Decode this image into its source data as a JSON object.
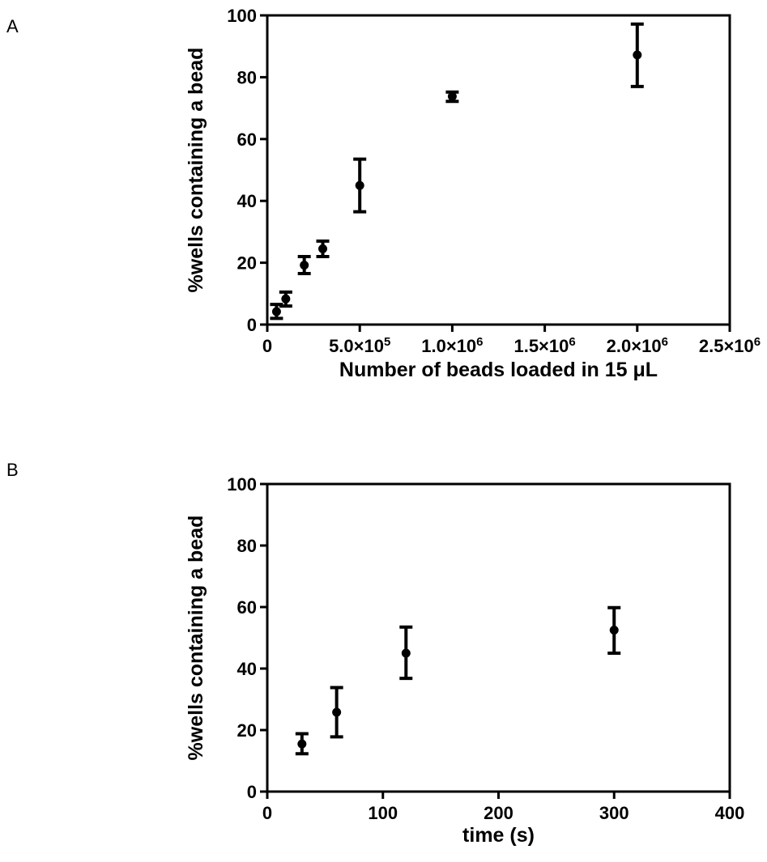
{
  "panels": [
    {
      "letter": "A"
    },
    {
      "letter": "B"
    }
  ],
  "chart_data": [
    {
      "type": "scatter",
      "panel": "A",
      "xlabel": "Number of beads loaded in 15 μL",
      "ylabel": "%wells containing a bead",
      "xlim": [
        0,
        2500000
      ],
      "ylim": [
        0,
        100
      ],
      "xticks": [
        {
          "value": 0,
          "label": "0"
        },
        {
          "value": 500000,
          "label": "5.0×10",
          "exp": "5"
        },
        {
          "value": 1000000,
          "label": "1.0×10",
          "exp": "6"
        },
        {
          "value": 1500000,
          "label": "1.5×10",
          "exp": "6"
        },
        {
          "value": 2000000,
          "label": "2.0×10",
          "exp": "6"
        },
        {
          "value": 2500000,
          "label": "2.5×10",
          "exp": "6"
        }
      ],
      "yticks": [
        {
          "value": 0,
          "label": "0"
        },
        {
          "value": 20,
          "label": "20"
        },
        {
          "value": 40,
          "label": "40"
        },
        {
          "value": 60,
          "label": "60"
        },
        {
          "value": 80,
          "label": "80"
        },
        {
          "value": 100,
          "label": "100"
        }
      ],
      "points": [
        {
          "x": 50000,
          "y": 4.2,
          "lo": 2.0,
          "hi": 6.5
        },
        {
          "x": 100000,
          "y": 8.3,
          "lo": 6.0,
          "hi": 10.5
        },
        {
          "x": 200000,
          "y": 19.2,
          "lo": 16.5,
          "hi": 22.0
        },
        {
          "x": 300000,
          "y": 24.5,
          "lo": 22.0,
          "hi": 27.0
        },
        {
          "x": 500000,
          "y": 45.0,
          "lo": 36.5,
          "hi": 53.5
        },
        {
          "x": 1000000,
          "y": 73.8,
          "lo": 72.2,
          "hi": 75.2
        },
        {
          "x": 2000000,
          "y": 87.2,
          "lo": 77.0,
          "hi": 97.2
        }
      ]
    },
    {
      "type": "scatter",
      "panel": "B",
      "xlabel": "time (s)",
      "ylabel": "%wells containing a bead",
      "xlim": [
        0,
        400
      ],
      "ylim": [
        0,
        100
      ],
      "xticks": [
        {
          "value": 0,
          "label": "0"
        },
        {
          "value": 100,
          "label": "100"
        },
        {
          "value": 200,
          "label": "200"
        },
        {
          "value": 300,
          "label": "300"
        },
        {
          "value": 400,
          "label": "400"
        }
      ],
      "yticks": [
        {
          "value": 0,
          "label": "0"
        },
        {
          "value": 20,
          "label": "20"
        },
        {
          "value": 40,
          "label": "40"
        },
        {
          "value": 60,
          "label": "60"
        },
        {
          "value": 80,
          "label": "80"
        },
        {
          "value": 100,
          "label": "100"
        }
      ],
      "points": [
        {
          "x": 30,
          "y": 15.5,
          "lo": 12.3,
          "hi": 18.8
        },
        {
          "x": 60,
          "y": 25.8,
          "lo": 17.8,
          "hi": 33.8
        },
        {
          "x": 120,
          "y": 45.0,
          "lo": 36.8,
          "hi": 53.5
        },
        {
          "x": 300,
          "y": 52.5,
          "lo": 45.0,
          "hi": 59.8
        }
      ]
    }
  ]
}
